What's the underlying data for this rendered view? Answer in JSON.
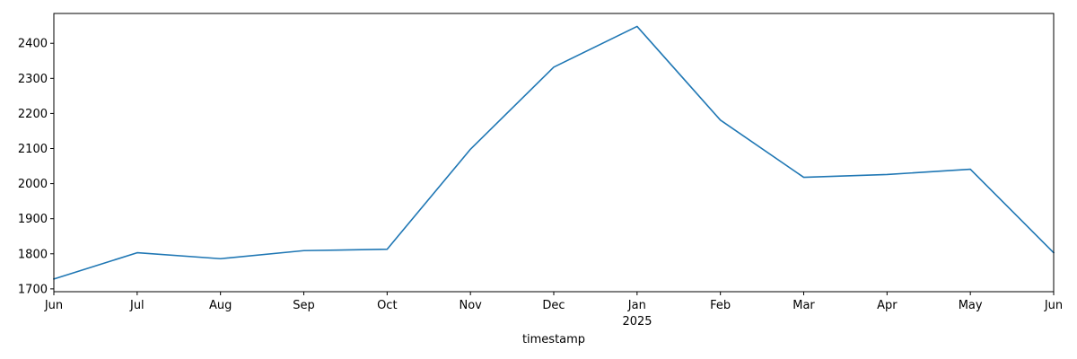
{
  "chart_data": {
    "type": "line",
    "title": "",
    "xlabel": "timestamp",
    "ylabel": "",
    "x": [
      "2024-06",
      "2024-07",
      "2024-08",
      "2024-09",
      "2024-10",
      "2024-11",
      "2024-12",
      "2025-01",
      "2025-02",
      "2025-03",
      "2025-04",
      "2025-05",
      "2025-06"
    ],
    "x_tick_labels": [
      "Jun",
      "Jul",
      "Aug",
      "Sep",
      "Oct",
      "Nov",
      "Dec",
      "Jan",
      "Feb",
      "Mar",
      "Apr",
      "May",
      "Jun"
    ],
    "x_year_label": "2025",
    "series": [
      {
        "values": [
          1728,
          1803,
          1786,
          1809,
          1813,
          2098,
          2332,
          2448,
          2181,
          2018,
          2026,
          2041,
          1803
        ],
        "color": "#1f77b4"
      }
    ],
    "ylim": [
      1692,
      2485
    ],
    "y_ticks": [
      1700,
      1800,
      1900,
      2000,
      2100,
      2200,
      2300,
      2400
    ],
    "grid": false,
    "legend": "none"
  }
}
